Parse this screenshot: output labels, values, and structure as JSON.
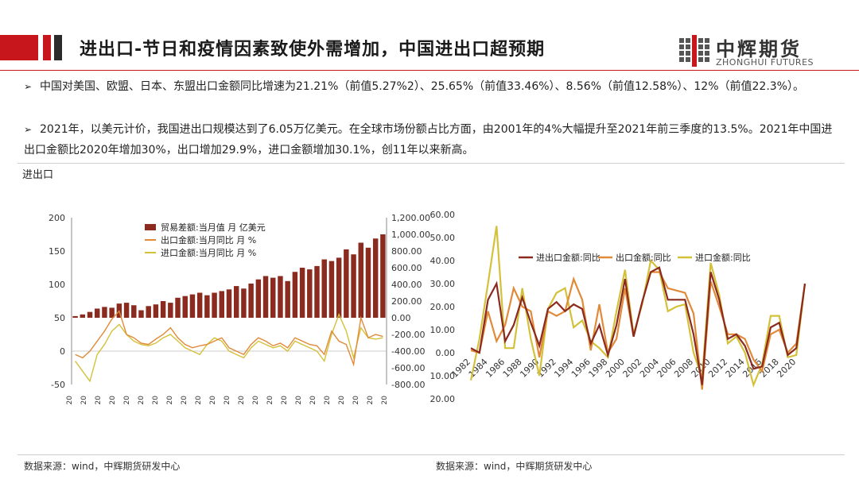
{
  "header": {
    "title": "进出口-节日和疫情因素致使外需增加，中国进出口超预期",
    "logo_cn": "中辉期货",
    "logo_en": "ZHONGHUI FUTURES"
  },
  "bullets": [
    {
      "text": "中国对美国、欧盟、日本、东盟出口金额同比增速为21.21%（前值5.27%2）、25.65%（前值33.46%）、8.56%（前值12.58%）、12%（前值22.3%）。"
    },
    {
      "text": "2021年，以美元计价，我国进出口规模达到了6.05万亿美元。在全球市场份额占比方面，由2001年的4%大幅提升至2021年前三季度的13.5%。2021年中国进出口金额比2020年增加30%，出口增加29.9%，进口金额增加30.1%，创11年以来新高。"
    }
  ],
  "section_label": "进出口",
  "sources": {
    "left": "数据来源：wind，中辉期货研发中心",
    "right": "数据来源：wind，中辉期货研发中心"
  },
  "colors": {
    "brand_red": "#c8161d",
    "trade_balance": "#8b2a1e",
    "export": "#e08a3a",
    "import": "#d4c13a"
  },
  "chart_data": [
    {
      "type": "bar+line",
      "series": [
        {
          "name": "贸易差额:当月值 月 亿美元",
          "kind": "bar",
          "axis": "right"
        },
        {
          "name": "出口金额:当月同比 月 %",
          "kind": "line",
          "axis": "left"
        },
        {
          "name": "进口金额:当月同比 月 %",
          "kind": "line",
          "axis": "left"
        }
      ],
      "left_ticks": [
        "200",
        "150",
        "100",
        "50",
        "0",
        "-50"
      ],
      "right_ticks": [
        "1,200.00",
        "1,000.00",
        "800.00",
        "600.00",
        "400.00",
        "200.00",
        "0.00",
        "-200.00",
        "-400.00",
        "-600.00",
        "-800.00"
      ],
      "ylim_left": [
        -50,
        200
      ],
      "ylim_right": [
        -800,
        1200
      ],
      "x_tick_label": "20",
      "x_tick_count": 23,
      "trade_balance": [
        20,
        40,
        70,
        110,
        130,
        120,
        170,
        180,
        150,
        90,
        140,
        160,
        200,
        180,
        240,
        260,
        280,
        300,
        270,
        300,
        320,
        340,
        380,
        350,
        410,
        460,
        500,
        480,
        500,
        440,
        550,
        600,
        580,
        620,
        700,
        680,
        720,
        820,
        760,
        900,
        840,
        950,
        1000
      ],
      "export_yoy": [
        -5,
        -10,
        0,
        15,
        30,
        48,
        60,
        25,
        20,
        12,
        10,
        18,
        25,
        35,
        20,
        10,
        5,
        8,
        10,
        15,
        20,
        5,
        0,
        -5,
        10,
        20,
        15,
        8,
        12,
        5,
        20,
        15,
        10,
        8,
        -5,
        30,
        15,
        10,
        -20,
        50,
        20,
        25,
        22
      ],
      "import_yoy": [
        -15,
        -30,
        -45,
        -5,
        10,
        30,
        40,
        25,
        15,
        10,
        8,
        12,
        20,
        25,
        15,
        5,
        0,
        -5,
        10,
        20,
        15,
        0,
        -5,
        -10,
        5,
        15,
        10,
        5,
        8,
        0,
        15,
        10,
        5,
        0,
        -15,
        25,
        55,
        30,
        -10,
        35,
        20,
        18,
        20
      ]
    },
    {
      "type": "line",
      "series": [
        {
          "name": "进出口金额:同比",
          "values": [
            2,
            0,
            23,
            30,
            5,
            12,
            24,
            13,
            3,
            19,
            22,
            18,
            21,
            19,
            4,
            12,
            -1,
            12,
            32,
            7,
            22,
            35,
            37,
            23,
            23,
            23,
            8,
            -14,
            35,
            23,
            6,
            8,
            3,
            -7,
            -6,
            11,
            13,
            -1,
            2,
            30
          ]
        },
        {
          "name": "出口金额:同比",
          "values": [
            1,
            0,
            18,
            5,
            12,
            28,
            20,
            18,
            -2,
            18,
            16,
            18,
            32,
            23,
            1,
            21,
            0,
            6,
            28,
            7,
            22,
            35,
            35,
            28,
            27,
            26,
            17,
            -16,
            31,
            20,
            8,
            8,
            6,
            -3,
            -8,
            8,
            10,
            0,
            4,
            30
          ]
        },
        {
          "name": "进口金额:同比",
          "values": [
            -12,
            6,
            30,
            55,
            2,
            2,
            28,
            6,
            -10,
            19,
            26,
            28,
            11,
            14,
            5,
            2,
            -2,
            18,
            36,
            8,
            21,
            40,
            36,
            18,
            20,
            21,
            0,
            -11,
            39,
            25,
            4,
            7,
            0,
            -14,
            -5,
            16,
            16,
            -2,
            -1,
            30
          ]
        }
      ],
      "x": [
        1982,
        1983,
        1984,
        1985,
        1986,
        1987,
        1988,
        1989,
        1990,
        1991,
        1992,
        1993,
        1994,
        1995,
        1996,
        1997,
        1998,
        1999,
        2000,
        2001,
        2002,
        2003,
        2004,
        2005,
        2006,
        2007,
        2008,
        2009,
        2010,
        2011,
        2012,
        2013,
        2014,
        2015,
        2016,
        2017,
        2018,
        2019,
        2020,
        2021
      ],
      "x_ticks": [
        "1982",
        "1984",
        "1986",
        "1988",
        "1990",
        "1992",
        "1994",
        "1996",
        "1998",
        "2000",
        "2002",
        "2004",
        "2006",
        "2008",
        "2010",
        "2012",
        "2014",
        "2016",
        "2018",
        "2020"
      ],
      "y_ticks": [
        "60.00",
        "50.00",
        "40.00",
        "30.00",
        "20.00",
        "10.00",
        "0.00",
        "-10.00",
        "-20.00"
      ],
      "ylim": [
        -20,
        60
      ]
    }
  ]
}
